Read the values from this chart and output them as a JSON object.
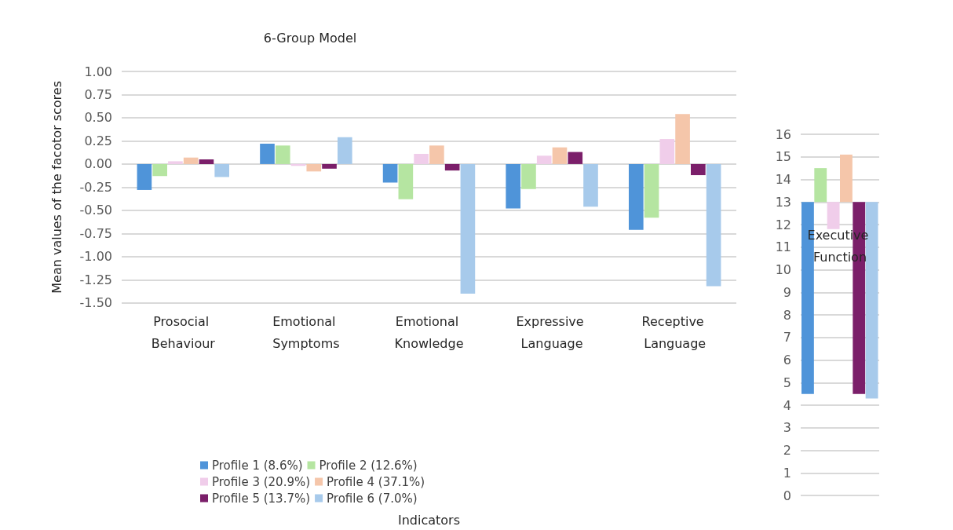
{
  "chart_data": [
    {
      "type": "bar",
      "title": "6-Group Model",
      "xlabel": "Indicators",
      "ylabel": "Mean values of the facotor scores",
      "categories": [
        "Prosocial Behaviour",
        "Emotional Symptoms",
        "Emotional Knowledge",
        "Expressive Language",
        "Receptive Language"
      ],
      "series": [
        {
          "name": "Profile 1 (8.6%)",
          "color": "#4f94d9",
          "values": [
            -0.28,
            0.22,
            -0.2,
            -0.48,
            -0.71
          ]
        },
        {
          "name": "Profile 2 (12.6%)",
          "color": "#b5e5a1",
          "values": [
            -0.13,
            0.2,
            -0.38,
            -0.27,
            -0.58
          ]
        },
        {
          "name": "Profile 3 (20.9%)",
          "color": "#f0cdea",
          "values": [
            0.03,
            -0.02,
            0.11,
            0.09,
            0.27
          ]
        },
        {
          "name": "Profile 4 (37.1%)",
          "color": "#f5c6aa",
          "values": [
            0.07,
            -0.08,
            0.2,
            0.18,
            0.54
          ]
        },
        {
          "name": "Profile 5 (13.7%)",
          "color": "#7b1f6a",
          "values": [
            0.05,
            -0.05,
            -0.07,
            0.13,
            -0.12
          ]
        },
        {
          "name": "Profile 6 (7.0%)",
          "color": "#a7caeb",
          "values": [
            -0.14,
            0.29,
            -1.4,
            -0.46,
            -1.32
          ]
        }
      ],
      "ylim": [
        -1.5,
        1
      ],
      "yticks": [
        {
          "value": -1.5,
          "label": "-1.50"
        },
        {
          "value": -1.25,
          "label": "-1.25"
        },
        {
          "value": -1,
          "label": "-1.00"
        },
        {
          "value": -0.75,
          "label": "-0.75"
        },
        {
          "value": -0.5,
          "label": "-0.50"
        },
        {
          "value": -0.25,
          "label": "-0.25"
        },
        {
          "value": 0,
          "label": "0.00"
        },
        {
          "value": 0.25,
          "label": "0.25"
        },
        {
          "value": 0.5,
          "label": "0.50"
        },
        {
          "value": 0.75,
          "label": "0.75"
        },
        {
          "value": 1,
          "label": "1.00"
        }
      ],
      "grid": "y",
      "legend": "bottom"
    },
    {
      "type": "bar",
      "categories": [
        "Executive Function"
      ],
      "series": [
        {
          "color": "#4f94d9",
          "base": [
            13
          ],
          "values": [
            -8.5
          ]
        },
        {
          "color": "#b5e5a1",
          "base": [
            13
          ],
          "values": [
            1.5
          ]
        },
        {
          "color": "#f0cdea",
          "base": [
            13
          ],
          "values": [
            -1.2
          ]
        },
        {
          "color": "#f5c6aa",
          "base": [
            13
          ],
          "values": [
            2.1
          ]
        },
        {
          "color": "#7b1f6a",
          "base": [
            13
          ],
          "values": [
            -8.5
          ]
        },
        {
          "color": "#a7caeb",
          "base": [
            13
          ],
          "values": [
            -8.7
          ]
        }
      ],
      "ylim": [
        0,
        16
      ],
      "yticks": [
        0,
        1,
        2,
        3,
        4,
        5,
        6,
        7,
        8,
        9,
        10,
        11,
        12,
        13,
        14,
        15,
        16
      ],
      "grid": "y"
    }
  ]
}
